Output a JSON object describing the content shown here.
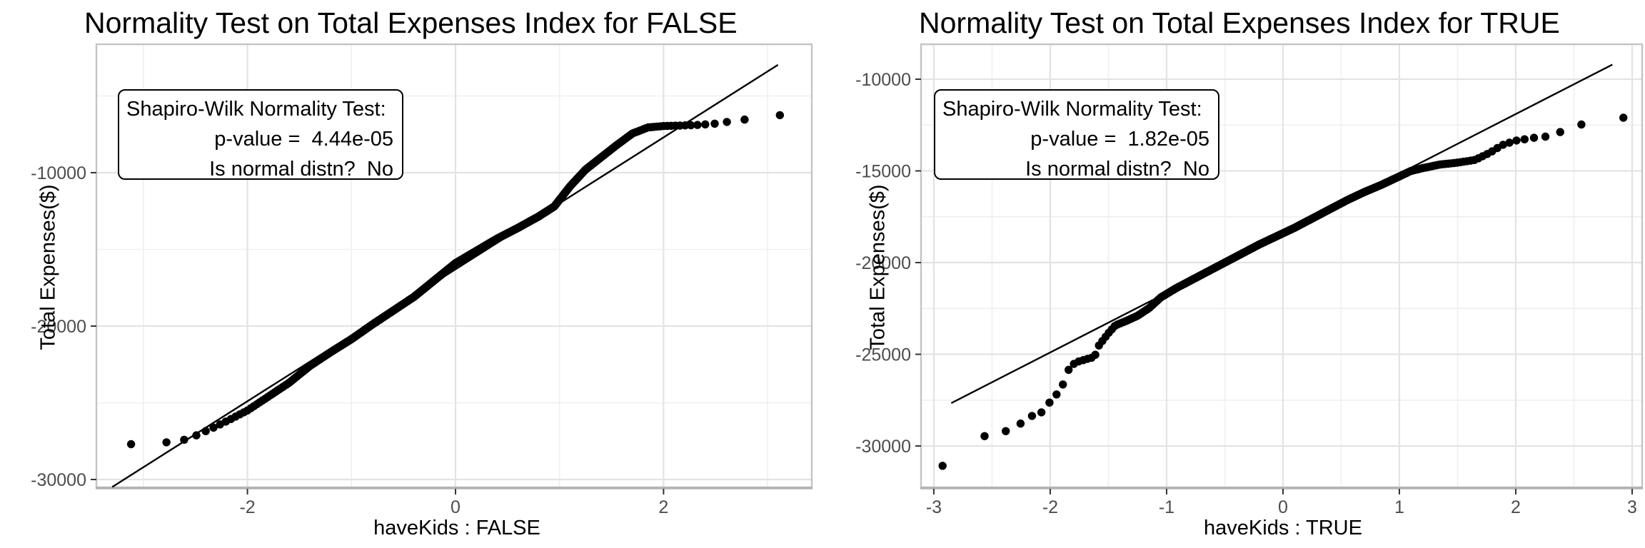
{
  "figure": {
    "background": "#ffffff",
    "point_color": "#000000",
    "ref_line_color": "#000000",
    "grid_major_color": "#e3e3e3",
    "grid_minor_color": "#efefef",
    "panel_border_color": "#c4c4c4",
    "axis_bottom_color": "#b2b2b2",
    "tick_mark_color": "#333333",
    "tick_label_color": "#4d4d4d"
  },
  "chart_data": [
    {
      "type": "scatter",
      "variant": "qq-plot",
      "title": "Normality Test on Total Expenses Index for FALSE",
      "xlabel": "haveKids : FALSE",
      "ylabel": "Total Expenses($)",
      "annotation": {
        "line1": "Shapiro-Wilk Normality Test:",
        "line2": "p-value =  4.44e-05",
        "line3": "Is normal distn?  No"
      },
      "p_value": "4.44e-05",
      "is_normal": "No",
      "legend": false,
      "grid": true,
      "xlim": [
        -3.452,
        3.425
      ],
      "ylim": [
        -30512,
        -1628
      ],
      "x_ticks": [
        {
          "v": -2,
          "label": "-2"
        },
        {
          "v": 0,
          "label": "0"
        },
        {
          "v": 2,
          "label": "2"
        }
      ],
      "x_minor": [
        -3,
        -1,
        1,
        3
      ],
      "y_ticks": [
        {
          "v": -10000,
          "label": "-10000"
        },
        {
          "v": -20000,
          "label": "-20000"
        },
        {
          "v": -30000,
          "label": "-30000"
        }
      ],
      "y_minor": [
        -5000,
        -15000,
        -25000
      ],
      "n_points": 550,
      "ref_line": {
        "intercept": -16300,
        "slope": 4300,
        "z_start": -3.3,
        "z_end": 3.1
      },
      "anchors": [
        [
          -3.12,
          -27700
        ],
        [
          -2.85,
          -27650
        ],
        [
          -2.6,
          -27400
        ],
        [
          -2.5,
          -27150
        ],
        [
          -2.42,
          -26900
        ],
        [
          -2.35,
          -26700
        ],
        [
          -2.2,
          -26200
        ],
        [
          -2.0,
          -25500
        ],
        [
          -1.8,
          -24600
        ],
        [
          -1.6,
          -23700
        ],
        [
          -1.4,
          -22600
        ],
        [
          -1.2,
          -21700
        ],
        [
          -1.0,
          -20850
        ],
        [
          -0.8,
          -19900
        ],
        [
          -0.6,
          -19000
        ],
        [
          -0.4,
          -18100
        ],
        [
          -0.2,
          -17000
        ],
        [
          0.0,
          -15900
        ],
        [
          0.2,
          -15100
        ],
        [
          0.4,
          -14300
        ],
        [
          0.6,
          -13600
        ],
        [
          0.8,
          -12850
        ],
        [
          0.95,
          -12200
        ],
        [
          1.1,
          -10900
        ],
        [
          1.25,
          -9800
        ],
        [
          1.4,
          -9000
        ],
        [
          1.55,
          -8200
        ],
        [
          1.7,
          -7450
        ],
        [
          1.85,
          -7050
        ],
        [
          2.0,
          -6960
        ],
        [
          2.3,
          -6900
        ],
        [
          2.5,
          -6800
        ],
        [
          2.7,
          -6600
        ],
        [
          2.9,
          -6450
        ],
        [
          3.12,
          -6250
        ]
      ]
    },
    {
      "type": "scatter",
      "variant": "qq-plot",
      "title": "Normality Test on Total Expenses Index for TRUE",
      "xlabel": "haveKids : TRUE",
      "ylabel": "Total Expenses($)",
      "annotation": {
        "line1": "Shapiro-Wilk Normality Test:",
        "line2": "p-value =  1.82e-05",
        "line3": "Is normal distn?  No"
      },
      "p_value": "1.82e-05",
      "is_normal": "No",
      "legend": false,
      "grid": true,
      "xlim": [
        -3.11,
        3.086
      ],
      "ylim": [
        -32256,
        -8093
      ],
      "x_ticks": [
        {
          "v": -3,
          "label": "-3"
        },
        {
          "v": -2,
          "label": "-2"
        },
        {
          "v": -1,
          "label": "-1"
        },
        {
          "v": 0,
          "label": "0"
        },
        {
          "v": 1,
          "label": "1"
        },
        {
          "v": 2,
          "label": "2"
        },
        {
          "v": 3,
          "label": "3"
        }
      ],
      "x_minor": [
        -2.5,
        -1.5,
        -0.5,
        0.5,
        1.5,
        2.5
      ],
      "y_ticks": [
        {
          "v": -10000,
          "label": "-10000"
        },
        {
          "v": -15000,
          "label": "-15000"
        },
        {
          "v": -20000,
          "label": "-20000"
        },
        {
          "v": -25000,
          "label": "-25000"
        },
        {
          "v": -30000,
          "label": "-30000"
        }
      ],
      "y_minor": [
        -12500,
        -17500,
        -22500,
        -27500
      ],
      "n_points": 290,
      "ref_line": {
        "intercept": -18400,
        "slope": 3250,
        "z_start": -2.85,
        "z_end": 2.83
      },
      "anchors": [
        [
          -2.92,
          -31080
        ],
        [
          -2.55,
          -29400
        ],
        [
          -2.31,
          -29100
        ],
        [
          -2.19,
          -28400
        ],
        [
          -2.09,
          -28280
        ],
        [
          -2.01,
          -27660
        ],
        [
          -1.94,
          -27150
        ],
        [
          -1.88,
          -26530
        ],
        [
          -1.83,
          -25640
        ],
        [
          -1.76,
          -25400
        ],
        [
          -1.68,
          -25250
        ],
        [
          -1.62,
          -25150
        ],
        [
          -1.58,
          -24500
        ],
        [
          -1.5,
          -23850
        ],
        [
          -1.44,
          -23420
        ],
        [
          -1.35,
          -23190
        ],
        [
          -1.25,
          -22900
        ],
        [
          -1.15,
          -22480
        ],
        [
          -1.05,
          -21900
        ],
        [
          -0.92,
          -21400
        ],
        [
          -0.8,
          -21000
        ],
        [
          -0.65,
          -20500
        ],
        [
          -0.5,
          -20000
        ],
        [
          -0.35,
          -19500
        ],
        [
          -0.2,
          -19000
        ],
        [
          -0.05,
          -18550
        ],
        [
          0.1,
          -18100
        ],
        [
          0.25,
          -17600
        ],
        [
          0.4,
          -17100
        ],
        [
          0.55,
          -16600
        ],
        [
          0.7,
          -16150
        ],
        [
          0.85,
          -15750
        ],
        [
          1.0,
          -15300
        ],
        [
          1.1,
          -15000
        ],
        [
          1.2,
          -14850
        ],
        [
          1.35,
          -14650
        ],
        [
          1.5,
          -14550
        ],
        [
          1.65,
          -14400
        ],
        [
          1.78,
          -14000
        ],
        [
          1.88,
          -13600
        ],
        [
          2.0,
          -13350
        ],
        [
          2.15,
          -13200
        ],
        [
          2.3,
          -13100
        ],
        [
          2.45,
          -12700
        ],
        [
          2.6,
          -12400
        ],
        [
          2.72,
          -12250
        ],
        [
          2.92,
          -12100
        ]
      ]
    }
  ]
}
